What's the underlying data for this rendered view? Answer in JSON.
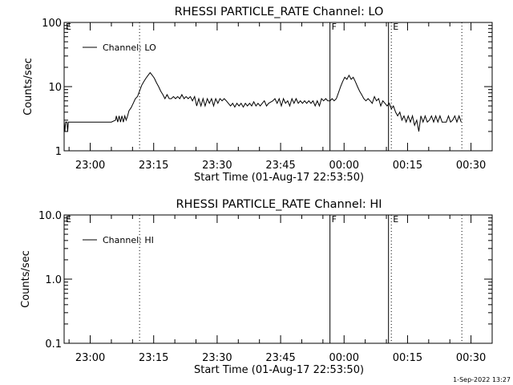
{
  "footer_stamp": "1-Sep-2022 13:27",
  "chart_data": [
    {
      "type": "line",
      "title": "RHESSI PARTICLE_RATE Channel: LO",
      "xlabel": "Start Time (01-Aug-17 22:53:50)",
      "ylabel": "Counts/sec",
      "yscale": "log",
      "ylim": [
        1,
        100
      ],
      "yticks": [
        {
          "v": 1,
          "label": "1"
        },
        {
          "v": 10,
          "label": "10"
        },
        {
          "v": 100,
          "label": "100"
        }
      ],
      "xlim": [
        "22:53:50",
        "00:35:00"
      ],
      "xticks": [
        "23:00",
        "23:15",
        "23:30",
        "23:45",
        "00:00",
        "00:15",
        "00:30"
      ],
      "legend": {
        "entries": [
          "Channel: LO"
        ],
        "position": "top-left"
      },
      "markers": [
        {
          "time": "22:53:50",
          "label": "E",
          "style": "dotted"
        },
        {
          "time": "23:11:40",
          "label": "",
          "style": "dotted"
        },
        {
          "time": "23:56:40",
          "label": "F",
          "style": "solid"
        },
        {
          "time": "00:10:30",
          "label": "",
          "style": "solid"
        },
        {
          "time": "00:11:10",
          "label": "E",
          "style": "dotted"
        },
        {
          "time": "00:27:50",
          "label": "",
          "style": "dotted"
        }
      ],
      "series": [
        {
          "name": "Channel: LO",
          "points": [
            [
              "22:53:50",
              2.8
            ],
            [
              "22:54:00",
              2.0
            ],
            [
              "22:54:10",
              2.8
            ],
            [
              "22:54:30",
              2.8
            ],
            [
              "22:54:40",
              2.0
            ],
            [
              "22:54:50",
              2.8
            ],
            [
              "22:58:00",
              2.8
            ],
            [
              "22:58:30",
              2.8
            ],
            [
              "22:59:00",
              2.8
            ],
            [
              "23:03:00",
              2.8
            ],
            [
              "23:05:00",
              2.8
            ],
            [
              "23:06:00",
              3.0
            ],
            [
              "23:06:10",
              3.5
            ],
            [
              "23:06:30",
              2.8
            ],
            [
              "23:06:50",
              3.5
            ],
            [
              "23:07:10",
              2.8
            ],
            [
              "23:07:30",
              3.5
            ],
            [
              "23:07:50",
              2.8
            ],
            [
              "23:08:10",
              3.5
            ],
            [
              "23:08:30",
              3.0
            ],
            [
              "23:08:50",
              3.5
            ],
            [
              "23:09:10",
              4.2
            ],
            [
              "23:09:40",
              4.7
            ],
            [
              "23:10:10",
              5.5
            ],
            [
              "23:10:40",
              6.5
            ],
            [
              "23:11:10",
              7.0
            ],
            [
              "23:11:40",
              8.5
            ],
            [
              "23:12:10",
              10.5
            ],
            [
              "23:12:40",
              12
            ],
            [
              "23:13:10",
              13.5
            ],
            [
              "23:13:40",
              15
            ],
            [
              "23:14:10",
              16.5
            ],
            [
              "23:14:40",
              15
            ],
            [
              "23:15:10",
              13.5
            ],
            [
              "23:15:40",
              11.5
            ],
            [
              "23:16:10",
              10
            ],
            [
              "23:16:40",
              8.5
            ],
            [
              "23:17:10",
              7.5
            ],
            [
              "23:17:40",
              6.5
            ],
            [
              "23:18:10",
              7.5
            ],
            [
              "23:18:40",
              6.5
            ],
            [
              "23:19:10",
              6.5
            ],
            [
              "23:19:40",
              7
            ],
            [
              "23:20:10",
              6.5
            ],
            [
              "23:20:40",
              7
            ],
            [
              "23:21:10",
              6.5
            ],
            [
              "23:21:40",
              7.5
            ],
            [
              "23:22:10",
              6.5
            ],
            [
              "23:22:40",
              7
            ],
            [
              "23:23:10",
              6.5
            ],
            [
              "23:23:40",
              7
            ],
            [
              "23:24:10",
              6
            ],
            [
              "23:24:40",
              7
            ],
            [
              "23:25:10",
              5
            ],
            [
              "23:25:40",
              6.5
            ],
            [
              "23:26:10",
              5
            ],
            [
              "23:26:40",
              6.5
            ],
            [
              "23:27:10",
              5
            ],
            [
              "23:27:40",
              6.5
            ],
            [
              "23:28:10",
              5.5
            ],
            [
              "23:28:40",
              6.5
            ],
            [
              "23:29:10",
              5
            ],
            [
              "23:29:40",
              6.5
            ],
            [
              "23:30:10",
              5.5
            ],
            [
              "23:30:40",
              6.5
            ],
            [
              "23:31:10",
              6
            ],
            [
              "23:31:40",
              6.5
            ],
            [
              "23:32:10",
              6
            ],
            [
              "23:33:10",
              5.0
            ],
            [
              "23:33:40",
              5.5
            ],
            [
              "23:34:10",
              4.8
            ],
            [
              "23:34:40",
              5.5
            ],
            [
              "23:35:10",
              5.0
            ],
            [
              "23:35:40",
              5.5
            ],
            [
              "23:36:10",
              4.8
            ],
            [
              "23:36:40",
              5.5
            ],
            [
              "23:37:10",
              5.0
            ],
            [
              "23:37:40",
              5.5
            ],
            [
              "23:38:10",
              5.0
            ],
            [
              "23:38:40",
              5.8
            ],
            [
              "23:39:10",
              5.0
            ],
            [
              "23:39:40",
              5.5
            ],
            [
              "23:40:10",
              5.0
            ],
            [
              "23:40:40",
              5.5
            ],
            [
              "23:41:10",
              6.0
            ],
            [
              "23:41:40",
              5.0
            ],
            [
              "23:42:10",
              5.5
            ],
            [
              "23:43:10",
              6.0
            ],
            [
              "23:43:40",
              6.5
            ],
            [
              "23:44:10",
              5.5
            ],
            [
              "23:44:40",
              6.5
            ],
            [
              "23:45:10",
              5.0
            ],
            [
              "23:45:40",
              6.5
            ],
            [
              "23:46:10",
              5.5
            ],
            [
              "23:46:40",
              6.0
            ],
            [
              "23:47:10",
              5.0
            ],
            [
              "23:47:40",
              6.5
            ],
            [
              "23:48:10",
              5.5
            ],
            [
              "23:48:40",
              6.5
            ],
            [
              "23:49:10",
              5.5
            ],
            [
              "23:49:40",
              6.0
            ],
            [
              "23:50:10",
              5.5
            ],
            [
              "23:50:40",
              6.0
            ],
            [
              "23:51:10",
              5.5
            ],
            [
              "23:51:40",
              6.0
            ],
            [
              "23:52:10",
              5.5
            ],
            [
              "23:52:40",
              6.0
            ],
            [
              "23:53:10",
              5.0
            ],
            [
              "23:53:40",
              6.0
            ],
            [
              "23:54:10",
              5.0
            ],
            [
              "23:54:40",
              6.5
            ],
            [
              "23:55:10",
              6.0
            ],
            [
              "23:55:40",
              6.5
            ],
            [
              "23:56:10",
              6.0
            ],
            [
              "23:56:40",
              6.0
            ],
            [
              "23:57:10",
              6.5
            ],
            [
              "23:57:40",
              6.0
            ],
            [
              "23:58:10",
              6.5
            ],
            [
              "23:58:40",
              8.0
            ],
            [
              "23:59:10",
              10
            ],
            [
              "23:59:40",
              12
            ],
            [
              "00:00:10",
              14
            ],
            [
              "00:00:40",
              13
            ],
            [
              "00:01:10",
              15
            ],
            [
              "00:01:40",
              13
            ],
            [
              "00:02:10",
              14
            ],
            [
              "00:02:40",
              12
            ],
            [
              "00:03:10",
              10
            ],
            [
              "00:03:40",
              8.5
            ],
            [
              "00:04:10",
              7.5
            ],
            [
              "00:04:40",
              6.5
            ],
            [
              "00:05:10",
              6.0
            ],
            [
              "00:05:40",
              6.5
            ],
            [
              "00:06:10",
              6.0
            ],
            [
              "00:06:40",
              5.5
            ],
            [
              "00:07:10",
              7.0
            ],
            [
              "00:07:40",
              6.0
            ],
            [
              "00:08:10",
              6.5
            ],
            [
              "00:08:40",
              5.0
            ],
            [
              "00:09:10",
              6.0
            ],
            [
              "00:09:40",
              5.5
            ],
            [
              "00:10:10",
              5.0
            ],
            [
              "00:10:40",
              5.5
            ],
            [
              "00:11:10",
              4.5
            ],
            [
              "00:11:40",
              5.0
            ],
            [
              "00:12:10",
              4.0
            ],
            [
              "00:12:40",
              3.5
            ],
            [
              "00:13:10",
              4.0
            ],
            [
              "00:13:40",
              3.0
            ],
            [
              "00:14:10",
              3.5
            ],
            [
              "00:14:40",
              2.8
            ],
            [
              "00:15:10",
              3.5
            ],
            [
              "00:15:40",
              2.8
            ],
            [
              "00:16:10",
              3.5
            ],
            [
              "00:16:40",
              2.5
            ],
            [
              "00:17:10",
              3.0
            ],
            [
              "00:17:40",
              2.0
            ],
            [
              "00:18:10",
              3.5
            ],
            [
              "00:18:40",
              2.8
            ],
            [
              "00:19:10",
              3.5
            ],
            [
              "00:19:40",
              2.8
            ],
            [
              "00:20:10",
              3.0
            ],
            [
              "00:20:40",
              3.5
            ],
            [
              "00:21:10",
              2.8
            ],
            [
              "00:21:40",
              3.5
            ],
            [
              "00:22:10",
              2.8
            ],
            [
              "00:22:40",
              3.5
            ],
            [
              "00:23:10",
              2.8
            ],
            [
              "00:24:10",
              2.8
            ],
            [
              "00:24:40",
              3.5
            ],
            [
              "00:25:10",
              2.8
            ],
            [
              "00:25:40",
              3.0
            ],
            [
              "00:26:10",
              3.5
            ],
            [
              "00:26:40",
              2.8
            ],
            [
              "00:27:10",
              3.5
            ],
            [
              "00:27:40",
              2.8
            ]
          ]
        }
      ]
    },
    {
      "type": "line",
      "title": "RHESSI PARTICLE_RATE Channel: HI",
      "xlabel": "Start Time (01-Aug-17 22:53:50)",
      "ylabel": "Counts/sec",
      "yscale": "log",
      "ylim": [
        0.1,
        10
      ],
      "yticks": [
        {
          "v": 0.1,
          "label": "0.1"
        },
        {
          "v": 1,
          "label": "1.0"
        },
        {
          "v": 10,
          "label": "10.0"
        }
      ],
      "xlim": [
        "22:53:50",
        "00:35:00"
      ],
      "xticks": [
        "23:00",
        "23:15",
        "23:30",
        "23:45",
        "00:00",
        "00:15",
        "00:30"
      ],
      "legend": {
        "entries": [
          "Channel: HI"
        ],
        "position": "top-left"
      },
      "markers": [
        {
          "time": "22:53:50",
          "label": "E",
          "style": "dotted"
        },
        {
          "time": "23:11:40",
          "label": "",
          "style": "dotted"
        },
        {
          "time": "23:56:40",
          "label": "F",
          "style": "solid"
        },
        {
          "time": "00:10:30",
          "label": "",
          "style": "solid"
        },
        {
          "time": "00:11:10",
          "label": "E",
          "style": "dotted"
        },
        {
          "time": "00:27:50",
          "label": "",
          "style": "dotted"
        }
      ],
      "series": [
        {
          "name": "Channel: HI",
          "points": []
        }
      ]
    }
  ]
}
